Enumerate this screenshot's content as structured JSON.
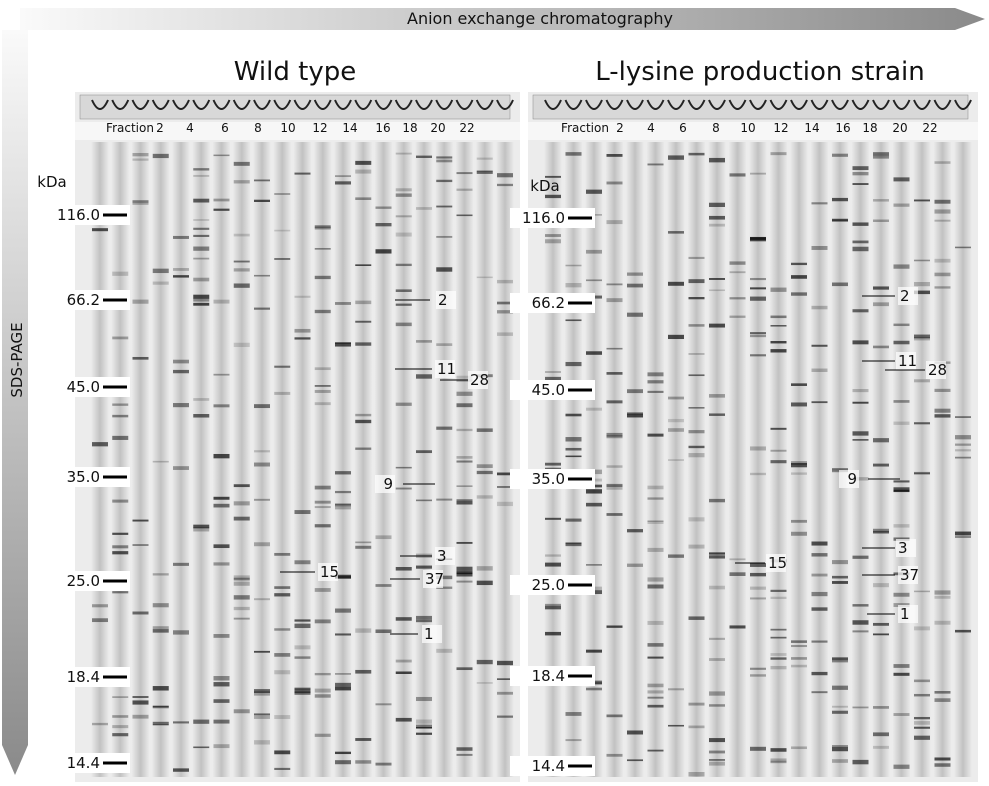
{
  "top_arrow": "Anion exchange chromatography",
  "side_arrow": "SDS-PAGE",
  "panels": [
    {
      "title": "Wild type",
      "fraction_label": "Fraction",
      "fractions": [
        "2",
        "4",
        "6",
        "8",
        "10",
        "12",
        "14",
        "16",
        "18",
        "20",
        "22"
      ],
      "mw_unit": "kDa",
      "mw_markers": [
        "116.0",
        "66.2",
        "45.0",
        "35.0",
        "25.0",
        "18.4",
        "14.4"
      ],
      "spots": [
        "2",
        "11",
        "28",
        "9",
        "3",
        "37",
        "15",
        "1"
      ]
    },
    {
      "title": "L-lysine production strain",
      "fraction_label": "Fraction",
      "fractions": [
        "2",
        "4",
        "6",
        "8",
        "10",
        "12",
        "14",
        "16",
        "18",
        "20",
        "22"
      ],
      "mw_unit": "kDa",
      "mw_markers": [
        "116.0",
        "66.2",
        "45.0",
        "35.0",
        "25.0",
        "18.4",
        "14.4"
      ],
      "spots": [
        "2",
        "11",
        "28",
        "9",
        "3",
        "37",
        "15",
        "1"
      ]
    }
  ]
}
